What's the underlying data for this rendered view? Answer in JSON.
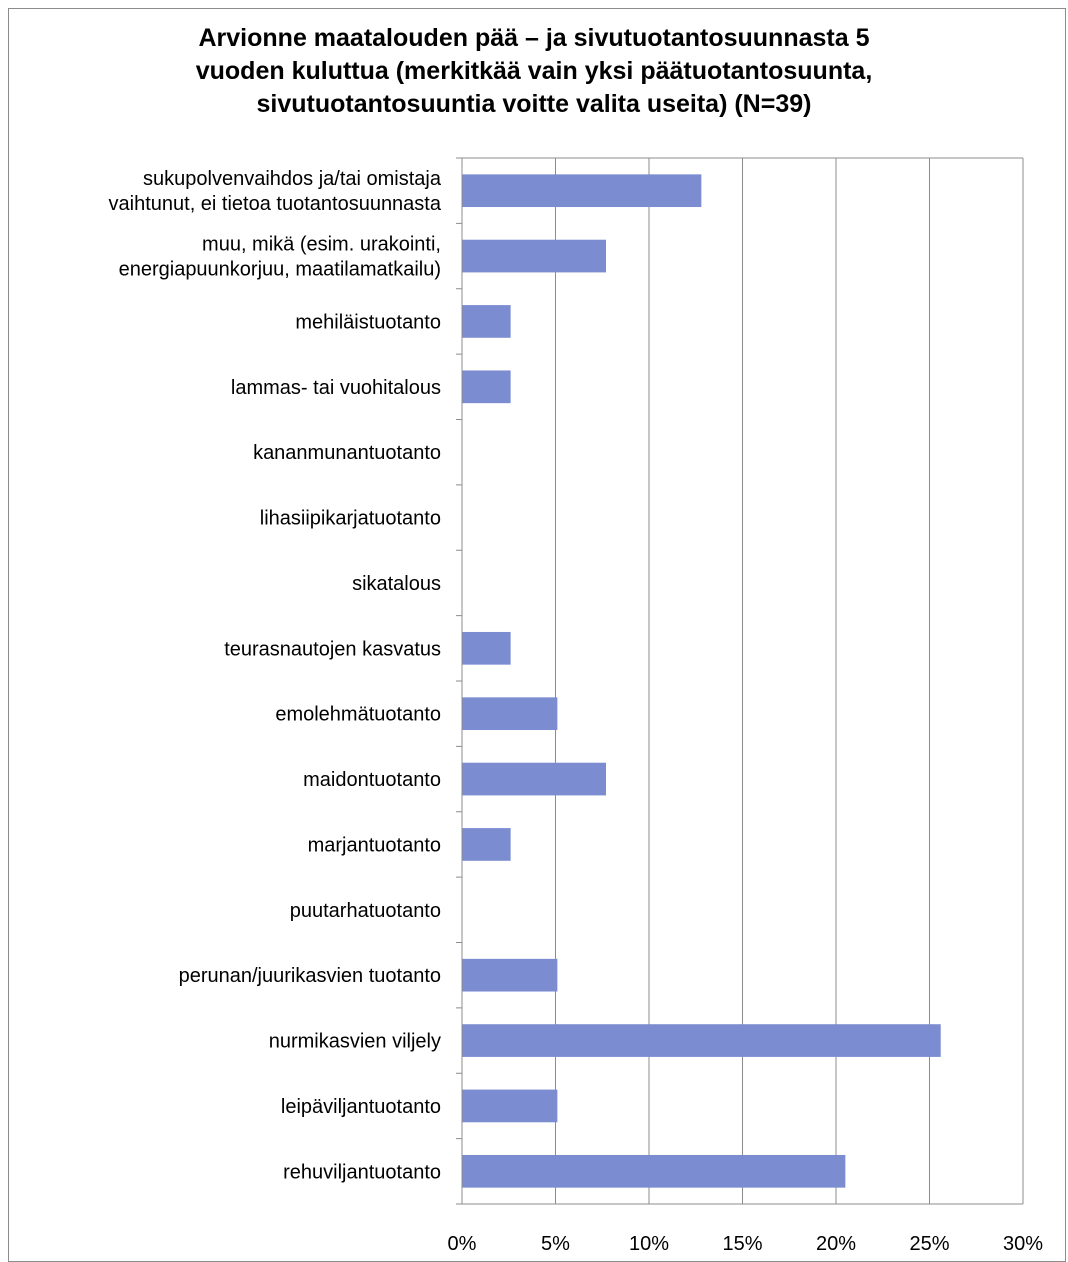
{
  "chart_data": {
    "type": "bar",
    "orientation": "horizontal",
    "title_lines": [
      "Arvionne maatalouden pää – ja sivutuotantosuunnasta 5",
      "vuoden kuluttua (merkitkää vain yksi päätuotantosuunta,",
      "sivutuotantosuuntia voitte valita useita)    (N=39)"
    ],
    "categories": [
      [
        "sukupolvenvaihdos ja/tai omistaja",
        "vaihtunut, ei tietoa tuotantosuunnasta"
      ],
      [
        "muu, mikä (esim. urakointi,",
        "energiapuunkorjuu, maatilamatkailu)"
      ],
      [
        "mehiläistuotanto"
      ],
      [
        "lammas- tai vuohitalous"
      ],
      [
        "kananmunantuotanto"
      ],
      [
        "lihasiipikarjatuotanto"
      ],
      [
        "sikatalous"
      ],
      [
        "teurasnautojen kasvatus"
      ],
      [
        "emolehmätuotanto"
      ],
      [
        "maidontuotanto"
      ],
      [
        "marjantuotanto"
      ],
      [
        "puutarhatuotanto"
      ],
      [
        "perunan/juurikasvien tuotanto"
      ],
      [
        "nurmikasvien viljely"
      ],
      [
        "leipäviljantuotanto"
      ],
      [
        "rehuviljantuotanto"
      ]
    ],
    "values": [
      12.8,
      7.7,
      2.6,
      2.6,
      0,
      0,
      0,
      2.6,
      5.1,
      7.7,
      2.6,
      0,
      5.1,
      25.6,
      5.1,
      20.5
    ],
    "xlim": [
      0,
      30
    ],
    "x_ticks": [
      0,
      5,
      10,
      15,
      20,
      25,
      30
    ],
    "x_tick_labels": [
      "0%",
      "5%",
      "10%",
      "15%",
      "20%",
      "25%",
      "30%"
    ],
    "grid": "vertical",
    "legend": "none",
    "bar_color": "#7b8cd1",
    "gridline_color": "#8c8c8c",
    "axis_color": "#8c8c8c"
  }
}
